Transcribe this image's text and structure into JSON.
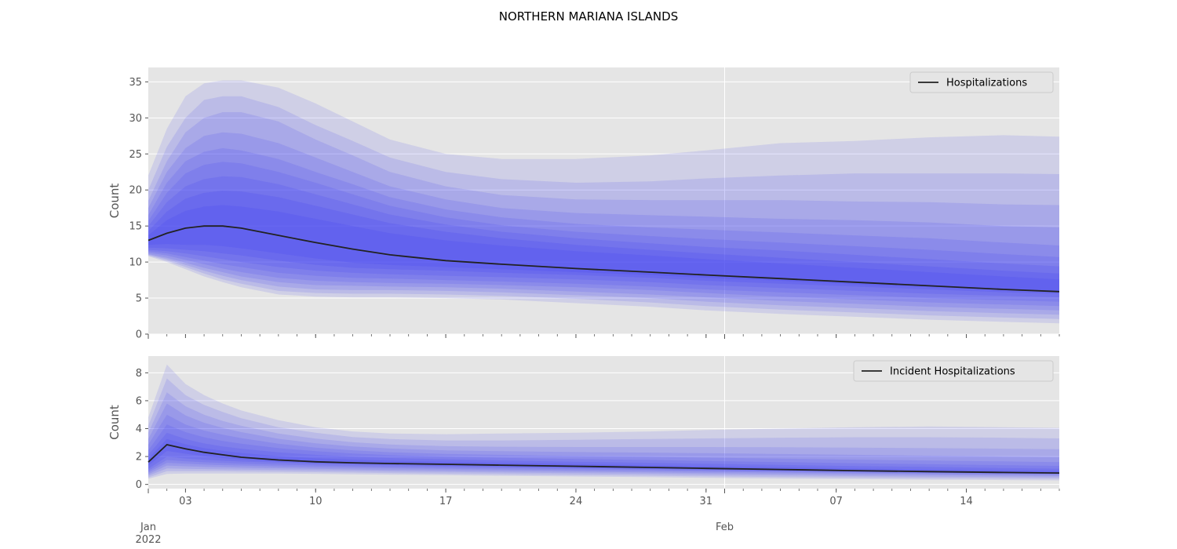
{
  "figure": {
    "title": "NORTHERN MARIANA ISLANDS"
  },
  "chart_data": [
    {
      "type": "area",
      "subtype": "fan-chart",
      "ylabel": "Count",
      "xlabel": "",
      "ylim": [
        0,
        37
      ],
      "yticks": [
        0,
        5,
        10,
        15,
        20,
        25,
        30,
        35
      ],
      "xlim": [
        "2022-01-01",
        "2022-02-19"
      ],
      "x_ticks": [
        {
          "date": "2022-01-01",
          "label": "Jan\n2022",
          "row": 2
        },
        {
          "date": "2022-01-03",
          "label": "03",
          "row": 1
        },
        {
          "date": "2022-01-10",
          "label": "10",
          "row": 1
        },
        {
          "date": "2022-01-17",
          "label": "17",
          "row": 1
        },
        {
          "date": "2022-01-24",
          "label": "24",
          "row": 1
        },
        {
          "date": "2022-01-31",
          "label": "31",
          "row": 1
        },
        {
          "date": "2022-02-01",
          "label": "Feb",
          "row": 2
        },
        {
          "date": "2022-02-07",
          "label": "07",
          "row": 1
        },
        {
          "date": "2022-02-14",
          "label": "14",
          "row": 1
        }
      ],
      "grid": true,
      "legend": {
        "position": "upper-right",
        "entries": [
          "Hospitalizations"
        ]
      },
      "series": [
        {
          "name": "Hospitalizations",
          "color": "#222222"
        }
      ],
      "x": [
        "2022-01-01",
        "2022-01-02",
        "2022-01-03",
        "2022-01-04",
        "2022-01-05",
        "2022-01-06",
        "2022-01-08",
        "2022-01-10",
        "2022-01-12",
        "2022-01-14",
        "2022-01-17",
        "2022-01-20",
        "2022-01-24",
        "2022-01-28",
        "2022-01-31",
        "2022-02-04",
        "2022-02-08",
        "2022-02-12",
        "2022-02-16",
        "2022-02-19"
      ],
      "median": [
        13.0,
        14.0,
        14.7,
        15.0,
        15.0,
        14.7,
        13.7,
        12.7,
        11.8,
        11.0,
        10.2,
        9.7,
        9.1,
        8.6,
        8.2,
        7.7,
        7.2,
        6.7,
        6.2,
        5.9
      ],
      "bands": [
        {
          "upper": [
            22.0,
            28.5,
            33.0,
            34.8,
            35.2,
            35.2,
            34.2,
            32.0,
            29.5,
            27.0,
            25.0,
            24.3,
            24.3,
            24.8,
            25.5,
            26.5,
            26.8,
            27.3,
            27.6,
            27.4
          ],
          "lower": [
            10.8,
            10.0,
            9.0,
            8.0,
            7.2,
            6.5,
            5.5,
            5.2,
            5.1,
            5.1,
            5.0,
            4.8,
            4.3,
            3.8,
            3.3,
            2.8,
            2.4,
            2.0,
            1.7,
            1.5
          ]
        },
        {
          "upper": [
            20.0,
            26.0,
            30.0,
            32.5,
            33.0,
            33.0,
            31.5,
            29.0,
            26.8,
            24.5,
            22.5,
            21.5,
            21.0,
            21.2,
            21.6,
            22.0,
            22.3,
            22.3,
            22.3,
            22.2
          ],
          "lower": [
            10.9,
            10.2,
            9.3,
            8.4,
            7.6,
            7.0,
            6.0,
            5.7,
            5.6,
            5.6,
            5.5,
            5.3,
            4.9,
            4.4,
            3.9,
            3.4,
            3.0,
            2.6,
            2.3,
            2.1
          ]
        },
        {
          "upper": [
            18.5,
            24.0,
            28.0,
            30.0,
            30.8,
            30.8,
            29.5,
            27.0,
            24.8,
            22.5,
            20.5,
            19.3,
            18.7,
            18.6,
            18.6,
            18.6,
            18.4,
            18.3,
            18.0,
            17.9
          ],
          "lower": [
            11.0,
            10.4,
            9.6,
            8.8,
            8.1,
            7.5,
            6.6,
            6.2,
            6.1,
            6.1,
            6.0,
            5.8,
            5.4,
            5.0,
            4.5,
            4.0,
            3.6,
            3.2,
            2.9,
            2.7
          ]
        },
        {
          "upper": [
            17.5,
            22.5,
            25.8,
            27.5,
            28.0,
            27.8,
            26.5,
            24.5,
            22.5,
            20.5,
            18.7,
            17.5,
            16.8,
            16.5,
            16.3,
            16.0,
            15.8,
            15.5,
            15.0,
            14.8
          ],
          "lower": [
            11.1,
            10.6,
            9.9,
            9.2,
            8.6,
            8.0,
            7.2,
            6.8,
            6.7,
            6.6,
            6.5,
            6.3,
            5.9,
            5.5,
            5.1,
            4.6,
            4.2,
            3.8,
            3.5,
            3.3
          ]
        },
        {
          "upper": [
            16.5,
            21.0,
            24.0,
            25.3,
            25.8,
            25.5,
            24.3,
            22.5,
            20.8,
            19.0,
            17.3,
            16.2,
            15.3,
            14.8,
            14.5,
            14.1,
            13.7,
            13.3,
            12.7,
            12.3
          ],
          "lower": [
            11.3,
            10.9,
            10.3,
            9.7,
            9.1,
            8.6,
            7.8,
            7.4,
            7.2,
            7.1,
            7.0,
            6.8,
            6.5,
            6.1,
            5.7,
            5.2,
            4.8,
            4.4,
            4.1,
            3.9
          ]
        },
        {
          "upper": [
            15.7,
            19.6,
            22.3,
            23.5,
            23.9,
            23.7,
            22.5,
            21.0,
            19.4,
            17.8,
            16.2,
            15.1,
            14.2,
            13.6,
            13.2,
            12.7,
            12.2,
            11.7,
            11.1,
            10.7
          ],
          "lower": [
            11.5,
            11.2,
            10.7,
            10.2,
            9.7,
            9.3,
            8.5,
            8.1,
            7.8,
            7.7,
            7.5,
            7.3,
            7.0,
            6.6,
            6.2,
            5.8,
            5.4,
            5.0,
            4.7,
            4.5
          ]
        },
        {
          "upper": [
            15.0,
            18.3,
            20.5,
            21.5,
            21.9,
            21.8,
            20.8,
            19.4,
            18.0,
            16.6,
            15.2,
            14.2,
            13.3,
            12.6,
            12.1,
            11.6,
            11.0,
            10.4,
            9.8,
            9.4
          ],
          "lower": [
            11.7,
            11.5,
            11.2,
            10.8,
            10.4,
            10.0,
            9.3,
            8.8,
            8.5,
            8.3,
            8.1,
            7.9,
            7.6,
            7.2,
            6.8,
            6.4,
            6.0,
            5.6,
            5.3,
            5.1
          ]
        },
        {
          "upper": [
            14.3,
            17.0,
            18.8,
            19.6,
            19.9,
            19.8,
            19.0,
            17.8,
            16.6,
            15.4,
            14.2,
            13.3,
            12.4,
            11.7,
            11.2,
            10.6,
            10.0,
            9.4,
            8.8,
            8.4
          ],
          "lower": [
            12.0,
            11.9,
            11.7,
            11.5,
            11.2,
            10.9,
            10.2,
            9.6,
            9.2,
            9.0,
            8.8,
            8.5,
            8.2,
            7.8,
            7.4,
            7.0,
            6.6,
            6.2,
            5.8,
            5.6
          ]
        },
        {
          "upper": [
            13.7,
            15.8,
            17.1,
            17.7,
            17.9,
            17.7,
            17.0,
            16.0,
            15.0,
            14.0,
            13.0,
            12.3,
            11.5,
            10.9,
            10.4,
            9.8,
            9.2,
            8.6,
            8.0,
            7.6
          ],
          "lower": [
            12.4,
            12.5,
            12.4,
            12.4,
            12.2,
            11.9,
            11.2,
            10.5,
            9.9,
            9.6,
            9.3,
            9.0,
            8.6,
            8.2,
            7.8,
            7.4,
            6.9,
            6.5,
            6.1,
            5.9
          ]
        }
      ]
    },
    {
      "type": "area",
      "subtype": "fan-chart",
      "ylabel": "Count",
      "xlabel": "",
      "ylim": [
        -0.3,
        9.2
      ],
      "yticks": [
        0,
        2,
        4,
        6,
        8
      ],
      "xlim": [
        "2022-01-01",
        "2022-02-19"
      ],
      "grid": true,
      "legend": {
        "position": "upper-right",
        "entries": [
          "Incident Hospitalizations"
        ]
      },
      "series": [
        {
          "name": "Incident Hospitalizations",
          "color": "#222222"
        }
      ],
      "x": [
        "2022-01-01",
        "2022-01-02",
        "2022-01-03",
        "2022-01-04",
        "2022-01-05",
        "2022-01-06",
        "2022-01-08",
        "2022-01-10",
        "2022-01-12",
        "2022-01-14",
        "2022-01-17",
        "2022-01-20",
        "2022-01-24",
        "2022-01-28",
        "2022-01-31",
        "2022-02-04",
        "2022-02-08",
        "2022-02-12",
        "2022-02-16",
        "2022-02-19"
      ],
      "median": [
        1.6,
        2.85,
        2.55,
        2.3,
        2.12,
        1.95,
        1.75,
        1.62,
        1.55,
        1.5,
        1.44,
        1.38,
        1.3,
        1.22,
        1.15,
        1.07,
        0.99,
        0.92,
        0.86,
        0.82
      ],
      "bands": [
        {
          "upper": [
            4.8,
            8.6,
            7.2,
            6.4,
            5.8,
            5.3,
            4.6,
            4.1,
            3.8,
            3.65,
            3.6,
            3.65,
            3.7,
            3.8,
            3.9,
            4.0,
            4.1,
            4.15,
            4.1,
            4.05
          ],
          "lower": [
            0.4,
            0.75,
            0.78,
            0.78,
            0.78,
            0.78,
            0.78,
            0.76,
            0.73,
            0.7,
            0.66,
            0.62,
            0.57,
            0.52,
            0.47,
            0.42,
            0.38,
            0.34,
            0.31,
            0.29
          ]
        },
        {
          "upper": [
            4.2,
            7.6,
            6.4,
            5.7,
            5.2,
            4.75,
            4.1,
            3.7,
            3.4,
            3.25,
            3.15,
            3.15,
            3.2,
            3.25,
            3.3,
            3.35,
            3.38,
            3.38,
            3.35,
            3.3
          ],
          "lower": [
            0.5,
            0.95,
            0.95,
            0.95,
            0.95,
            0.93,
            0.91,
            0.88,
            0.85,
            0.81,
            0.77,
            0.73,
            0.68,
            0.63,
            0.58,
            0.53,
            0.49,
            0.45,
            0.42,
            0.4
          ]
        },
        {
          "upper": [
            3.7,
            6.6,
            5.6,
            5.0,
            4.55,
            4.2,
            3.65,
            3.28,
            3.02,
            2.86,
            2.74,
            2.7,
            2.68,
            2.68,
            2.68,
            2.66,
            2.64,
            2.6,
            2.56,
            2.52
          ],
          "lower": [
            0.62,
            1.15,
            1.12,
            1.1,
            1.08,
            1.06,
            1.03,
            1.0,
            0.97,
            0.93,
            0.89,
            0.85,
            0.8,
            0.75,
            0.7,
            0.65,
            0.6,
            0.56,
            0.53,
            0.51
          ]
        },
        {
          "upper": [
            3.25,
            5.8,
            4.95,
            4.42,
            4.05,
            3.75,
            3.27,
            2.95,
            2.72,
            2.57,
            2.44,
            2.38,
            2.32,
            2.28,
            2.24,
            2.18,
            2.12,
            2.06,
            2.0,
            1.96
          ],
          "lower": [
            0.74,
            1.35,
            1.3,
            1.26,
            1.23,
            1.2,
            1.16,
            1.12,
            1.08,
            1.04,
            1.0,
            0.96,
            0.91,
            0.86,
            0.81,
            0.76,
            0.71,
            0.67,
            0.63,
            0.61
          ]
        },
        {
          "upper": [
            2.85,
            5.0,
            4.3,
            3.86,
            3.56,
            3.32,
            2.92,
            2.64,
            2.45,
            2.31,
            2.19,
            2.12,
            2.04,
            1.98,
            1.92,
            1.85,
            1.78,
            1.71,
            1.65,
            1.6
          ],
          "lower": [
            0.86,
            1.55,
            1.48,
            1.43,
            1.38,
            1.35,
            1.29,
            1.24,
            1.2,
            1.16,
            1.11,
            1.07,
            1.01,
            0.96,
            0.91,
            0.86,
            0.81,
            0.76,
            0.72,
            0.69
          ]
        },
        {
          "upper": [
            2.45,
            4.3,
            3.75,
            3.38,
            3.12,
            2.92,
            2.6,
            2.38,
            2.22,
            2.1,
            1.99,
            1.91,
            1.82,
            1.75,
            1.68,
            1.6,
            1.52,
            1.45,
            1.38,
            1.33
          ],
          "lower": [
            0.98,
            1.75,
            1.66,
            1.59,
            1.53,
            1.49,
            1.42,
            1.36,
            1.31,
            1.27,
            1.22,
            1.17,
            1.11,
            1.05,
            0.99,
            0.93,
            0.88,
            0.83,
            0.78,
            0.75
          ]
        },
        {
          "upper": [
            2.12,
            3.7,
            3.25,
            2.94,
            2.72,
            2.56,
            2.3,
            2.12,
            1.99,
            1.89,
            1.8,
            1.72,
            1.63,
            1.55,
            1.48,
            1.4,
            1.32,
            1.25,
            1.18,
            1.13
          ],
          "lower": [
            1.12,
            1.98,
            1.86,
            1.77,
            1.7,
            1.64,
            1.56,
            1.49,
            1.43,
            1.38,
            1.32,
            1.26,
            1.19,
            1.12,
            1.06,
            0.99,
            0.93,
            0.87,
            0.82,
            0.79
          ]
        },
        {
          "upper": [
            1.86,
            3.25,
            2.88,
            2.6,
            2.41,
            2.26,
            2.03,
            1.88,
            1.78,
            1.7,
            1.62,
            1.55,
            1.46,
            1.38,
            1.31,
            1.23,
            1.15,
            1.08,
            1.02,
            0.97
          ],
          "lower": [
            1.34,
            2.4,
            2.2,
            2.03,
            1.89,
            1.79,
            1.63,
            1.52,
            1.46,
            1.41,
            1.34,
            1.29,
            1.21,
            1.13,
            1.06,
            0.99,
            0.91,
            0.84,
            0.79,
            0.75
          ]
        }
      ]
    }
  ],
  "colors": {
    "axes_background": "#e5e5e5",
    "grid": "#ffffff",
    "band_fill": "#3b3bf0",
    "median_line": "#222222",
    "tick_text": "#555555"
  }
}
